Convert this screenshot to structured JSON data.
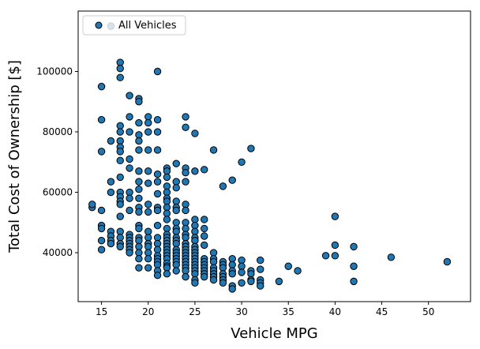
{
  "chart_data": {
    "type": "scatter",
    "xlabel": "Vehicle MPG",
    "ylabel": "Total Cost of Ownership [$]",
    "xlim": [
      12.5,
      54.5
    ],
    "ylim": [
      23800,
      120000
    ],
    "xticks": [
      15,
      20,
      25,
      30,
      35,
      40,
      45,
      50
    ],
    "yticks": [
      40000,
      60000,
      80000,
      100000
    ],
    "grid": false,
    "legend": {
      "position": "top-left",
      "entries": [
        "All Vehicles"
      ]
    },
    "series": [
      {
        "name": "All Vehicles",
        "color": "#1f77b4",
        "edgecolor": "#000000",
        "points": [
          [
            14,
            55000
          ],
          [
            14,
            56000
          ],
          [
            15,
            95000
          ],
          [
            15,
            84000
          ],
          [
            15,
            73500
          ],
          [
            15,
            54000
          ],
          [
            15,
            49000
          ],
          [
            15,
            48000
          ],
          [
            15,
            44000
          ],
          [
            15,
            41000
          ],
          [
            16,
            115000
          ],
          [
            16,
            77000
          ],
          [
            16,
            63500
          ],
          [
            16,
            60000
          ],
          [
            16,
            47000
          ],
          [
            16,
            45500
          ],
          [
            16,
            44000
          ],
          [
            16,
            43000
          ],
          [
            17,
            103000
          ],
          [
            17,
            101000
          ],
          [
            17,
            98000
          ],
          [
            17,
            82000
          ],
          [
            17,
            80000
          ],
          [
            17,
            77000
          ],
          [
            17,
            75000
          ],
          [
            17,
            73500
          ],
          [
            17,
            70500
          ],
          [
            17,
            65000
          ],
          [
            17,
            60000
          ],
          [
            17,
            58500
          ],
          [
            17,
            57000
          ],
          [
            17,
            56000
          ],
          [
            17,
            52000
          ],
          [
            17,
            47000
          ],
          [
            17,
            45000
          ],
          [
            17,
            43000
          ],
          [
            17,
            42000
          ],
          [
            18,
            92000
          ],
          [
            18,
            85000
          ],
          [
            18,
            80000
          ],
          [
            18,
            71000
          ],
          [
            18,
            68000
          ],
          [
            18,
            60000
          ],
          [
            18,
            58000
          ],
          [
            18,
            54000
          ],
          [
            18,
            46000
          ],
          [
            18,
            45000
          ],
          [
            18,
            44000
          ],
          [
            18,
            43000
          ],
          [
            18,
            42000
          ],
          [
            18,
            41000
          ],
          [
            18,
            40000
          ],
          [
            19,
            91000
          ],
          [
            19,
            90000
          ],
          [
            19,
            83000
          ],
          [
            19,
            79000
          ],
          [
            19,
            77000
          ],
          [
            19,
            74000
          ],
          [
            19,
            67000
          ],
          [
            19,
            63500
          ],
          [
            19,
            61000
          ],
          [
            19,
            58000
          ],
          [
            19,
            55000
          ],
          [
            19,
            53500
          ],
          [
            19,
            49000
          ],
          [
            19,
            48000
          ],
          [
            19,
            45000
          ],
          [
            19,
            44000
          ],
          [
            19,
            42000
          ],
          [
            19,
            40000
          ],
          [
            19,
            38000
          ],
          [
            19,
            35000
          ],
          [
            20,
            85000
          ],
          [
            20,
            83000
          ],
          [
            20,
            80000
          ],
          [
            20,
            74000
          ],
          [
            20,
            67000
          ],
          [
            20,
            63000
          ],
          [
            20,
            56000
          ],
          [
            20,
            53500
          ],
          [
            20,
            47000
          ],
          [
            20,
            45000
          ],
          [
            20,
            43000
          ],
          [
            20,
            42000
          ],
          [
            20,
            40000
          ],
          [
            20,
            38000
          ],
          [
            20,
            35000
          ],
          [
            21,
            100000
          ],
          [
            21,
            84000
          ],
          [
            21,
            80000
          ],
          [
            21,
            74000
          ],
          [
            21,
            66000
          ],
          [
            21,
            63500
          ],
          [
            21,
            59500
          ],
          [
            21,
            55000
          ],
          [
            21,
            54000
          ],
          [
            21,
            49000
          ],
          [
            21,
            45000
          ],
          [
            21,
            43000
          ],
          [
            21,
            41000
          ],
          [
            21,
            39000
          ],
          [
            21,
            38000
          ],
          [
            21,
            37000
          ],
          [
            21,
            36000
          ],
          [
            21,
            34000
          ],
          [
            21,
            32500
          ],
          [
            22,
            68000
          ],
          [
            22,
            67000
          ],
          [
            22,
            65000
          ],
          [
            22,
            62000
          ],
          [
            22,
            60000
          ],
          [
            22,
            58000
          ],
          [
            22,
            57000
          ],
          [
            22,
            55000
          ],
          [
            22,
            53000
          ],
          [
            22,
            51000
          ],
          [
            22,
            48000
          ],
          [
            22,
            46000
          ],
          [
            22,
            45000
          ],
          [
            22,
            44000
          ],
          [
            22,
            43000
          ],
          [
            22,
            42000
          ],
          [
            22,
            41000
          ],
          [
            22,
            40000
          ],
          [
            22,
            39000
          ],
          [
            22,
            38000
          ],
          [
            22,
            36500
          ],
          [
            22,
            35500
          ],
          [
            22,
            35000
          ],
          [
            22,
            33000
          ],
          [
            23,
            69500
          ],
          [
            23,
            63500
          ],
          [
            23,
            61500
          ],
          [
            23,
            57000
          ],
          [
            23,
            55000
          ],
          [
            23,
            54000
          ],
          [
            23,
            50000
          ],
          [
            23,
            48000
          ],
          [
            23,
            47000
          ],
          [
            23,
            45000
          ],
          [
            23,
            44000
          ],
          [
            23,
            43000
          ],
          [
            23,
            41000
          ],
          [
            23,
            40000
          ],
          [
            23,
            39000
          ],
          [
            23,
            38000
          ],
          [
            23,
            37000
          ],
          [
            23,
            36000
          ],
          [
            23,
            34000
          ],
          [
            24,
            85000
          ],
          [
            24,
            81500
          ],
          [
            24,
            68000
          ],
          [
            24,
            66500
          ],
          [
            24,
            63500
          ],
          [
            24,
            56000
          ],
          [
            24,
            54000
          ],
          [
            24,
            50000
          ],
          [
            24,
            48000
          ],
          [
            24,
            46000
          ],
          [
            24,
            45000
          ],
          [
            24,
            43000
          ],
          [
            24,
            42000
          ],
          [
            24,
            41000
          ],
          [
            24,
            40000
          ],
          [
            24,
            39000
          ],
          [
            24,
            38000
          ],
          [
            24,
            37000
          ],
          [
            24,
            36000
          ],
          [
            24,
            35000
          ],
          [
            24,
            34000
          ],
          [
            24,
            32000
          ],
          [
            25,
            79500
          ],
          [
            25,
            67000
          ],
          [
            25,
            51000
          ],
          [
            25,
            49000
          ],
          [
            25,
            47000
          ],
          [
            25,
            45000
          ],
          [
            25,
            44000
          ],
          [
            25,
            42000
          ],
          [
            25,
            41000
          ],
          [
            25,
            40000
          ],
          [
            25,
            39000
          ],
          [
            25,
            38000
          ],
          [
            25,
            37000
          ],
          [
            25,
            36000
          ],
          [
            25,
            35000
          ],
          [
            25,
            34000
          ],
          [
            25,
            33000
          ],
          [
            25,
            31000
          ],
          [
            25,
            30000
          ],
          [
            26,
            67500
          ],
          [
            26,
            51000
          ],
          [
            26,
            48000
          ],
          [
            26,
            45500
          ],
          [
            26,
            42500
          ],
          [
            26,
            38000
          ],
          [
            26,
            37000
          ],
          [
            26,
            36000
          ],
          [
            26,
            35000
          ],
          [
            26,
            34000
          ],
          [
            26,
            33000
          ],
          [
            26,
            32000
          ],
          [
            27,
            74000
          ],
          [
            27,
            40000
          ],
          [
            27,
            38000
          ],
          [
            27,
            37000
          ],
          [
            27,
            35000
          ],
          [
            27,
            34000
          ],
          [
            27,
            33000
          ],
          [
            27,
            32000
          ],
          [
            27,
            31000
          ],
          [
            28,
            62000
          ],
          [
            28,
            37000
          ],
          [
            28,
            36000
          ],
          [
            28,
            35000
          ],
          [
            28,
            33000
          ],
          [
            28,
            32000
          ],
          [
            28,
            31000
          ],
          [
            28,
            30000
          ],
          [
            29,
            64000
          ],
          [
            29,
            38000
          ],
          [
            29,
            36000
          ],
          [
            29,
            34000
          ],
          [
            29,
            33000
          ],
          [
            29,
            29000
          ],
          [
            29,
            28000
          ],
          [
            30,
            70000
          ],
          [
            30,
            37500
          ],
          [
            30,
            35500
          ],
          [
            30,
            33500
          ],
          [
            30,
            30000
          ],
          [
            31,
            74500
          ],
          [
            31,
            34000
          ],
          [
            31,
            33000
          ],
          [
            31,
            31000
          ],
          [
            31,
            30500
          ],
          [
            32,
            37500
          ],
          [
            32,
            34500
          ],
          [
            32,
            31000
          ],
          [
            32,
            30000
          ],
          [
            32,
            29000
          ],
          [
            34,
            30500
          ],
          [
            35,
            35500
          ],
          [
            36,
            34000
          ],
          [
            39,
            39000
          ],
          [
            40,
            52000
          ],
          [
            40,
            42500
          ],
          [
            40,
            39000
          ],
          [
            42,
            42000
          ],
          [
            42,
            35500
          ],
          [
            42,
            30500
          ],
          [
            46,
            38500
          ],
          [
            52,
            37000
          ]
        ]
      }
    ]
  }
}
